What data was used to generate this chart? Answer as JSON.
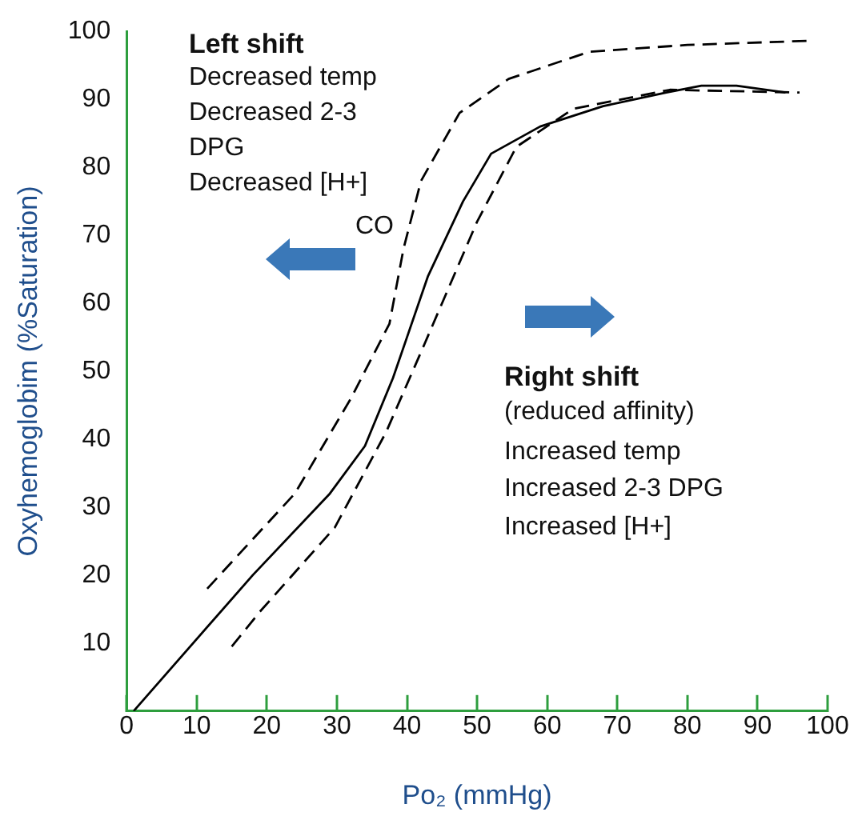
{
  "chart_data": {
    "type": "line",
    "xlabel": "Po₂ (mmHg)",
    "ylabel": "Oxyhemoglobim (%Saturation)",
    "xlim": [
      0,
      100
    ],
    "xticks": [
      0,
      10,
      20,
      30,
      40,
      50,
      60,
      70,
      80,
      90,
      100
    ],
    "ylim": [
      0,
      100
    ],
    "yticks": [
      10,
      20,
      30,
      40,
      50,
      60,
      70,
      80,
      90,
      100
    ],
    "grid": false,
    "legend": false,
    "marker": "none",
    "series": [
      {
        "color": "#000000",
        "line_style": "solid",
        "x": [
          1,
          18,
          29,
          34,
          38,
          43,
          48,
          52,
          59,
          68,
          77,
          82,
          87,
          94
        ],
        "values": [
          0,
          20,
          32,
          39,
          49,
          64,
          75,
          82,
          86,
          89,
          91,
          92,
          92,
          91
        ]
      },
      {
        "color": "#000000",
        "line_style": "dashed",
        "x": [
          11.5,
          24,
          32,
          37.5,
          39.5,
          42,
          47.5,
          54.5,
          66,
          80,
          97
        ],
        "values": [
          18,
          32,
          46,
          57,
          68,
          78,
          88,
          93,
          97,
          98,
          98.6
        ]
      },
      {
        "color": "#000000",
        "line_style": "dashed",
        "x": [
          15,
          19,
          29.7,
          37,
          42.5,
          50,
          55.6,
          63.7,
          77.5,
          96
        ],
        "values": [
          9.5,
          14.6,
          27,
          41,
          54,
          72,
          83,
          88.6,
          91.4,
          91
        ]
      }
    ],
    "annotations": [
      "Left shift",
      "Decreased temp",
      "Decreased 2-3",
      "DPG",
      "Decreased [H+]",
      "CO",
      "Right shift",
      "(reduced affinity)",
      "Increased temp",
      "Increased 2-3 DPG",
      "Increased [H+]"
    ]
  }
}
